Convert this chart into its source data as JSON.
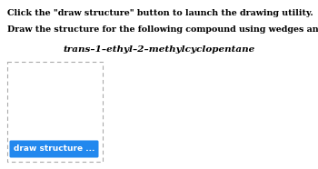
{
  "line1": "Click the \"draw structure\" button to launch the drawing utility.",
  "line2": "Draw the structure for the following compound using wedges and dashes.",
  "compound": "trans–1–ethyl–2–methylcyclopentane",
  "button_text": "draw structure ...",
  "bg_color": "#ffffff",
  "text_color": "#000000",
  "button_bg": "#2288ee",
  "button_text_color": "#ffffff",
  "line1_fontsize": 6.8,
  "line2_fontsize": 6.8,
  "compound_fontsize": 7.5
}
